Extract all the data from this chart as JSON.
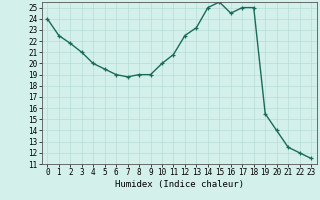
{
  "x": [
    0,
    1,
    2,
    3,
    4,
    5,
    6,
    7,
    8,
    9,
    10,
    11,
    12,
    13,
    14,
    15,
    16,
    17,
    18,
    19,
    20,
    21,
    22,
    23
  ],
  "y": [
    24.0,
    22.5,
    21.8,
    21.0,
    20.0,
    19.5,
    19.0,
    18.8,
    19.0,
    19.0,
    20.0,
    20.8,
    22.5,
    23.2,
    25.0,
    25.5,
    24.5,
    25.0,
    25.0,
    15.5,
    14.0,
    12.5,
    12.0,
    11.5
  ],
  "xlabel": "Humidex (Indice chaleur)",
  "ylim": [
    11,
    25.5
  ],
  "xlim": [
    -0.5,
    23.5
  ],
  "yticks": [
    11,
    12,
    13,
    14,
    15,
    16,
    17,
    18,
    19,
    20,
    21,
    22,
    23,
    24,
    25
  ],
  "xticks": [
    0,
    1,
    2,
    3,
    4,
    5,
    6,
    7,
    8,
    9,
    10,
    11,
    12,
    13,
    14,
    15,
    16,
    17,
    18,
    19,
    20,
    21,
    22,
    23
  ],
  "line_color": "#1a6b5a",
  "marker": "+",
  "bg_color": "#d4f0eb",
  "grid_color": "#b8ddd8",
  "xlabel_fontsize": 6.5,
  "tick_fontsize": 5.5,
  "linewidth": 1.0,
  "markersize": 3.5,
  "markeredgewidth": 0.9
}
